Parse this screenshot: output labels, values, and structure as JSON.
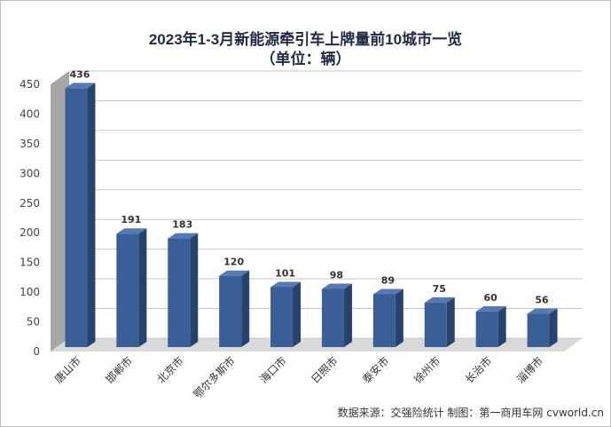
{
  "chart_data": {
    "type": "bar",
    "title": "2023年1-3月新能源牵引车上牌量前10城市一览",
    "subtitle": "（单位：辆）",
    "categories": [
      "唐山市",
      "邯郸市",
      "北京市",
      "鄂尔多斯市",
      "海口市",
      "日照市",
      "泰安市",
      "徐州市",
      "长治市",
      "淄博市"
    ],
    "values": [
      436,
      191,
      183,
      120,
      101,
      98,
      89,
      75,
      60,
      56
    ],
    "ylim": [
      0,
      450
    ],
    "yticks": [
      0,
      50,
      100,
      150,
      200,
      250,
      300,
      350,
      400,
      450
    ],
    "grid": true,
    "style": "3d-column",
    "colors": {
      "bar_front": "#3a5f96",
      "bar_side": "#26436f",
      "bar_top": "#5479b4",
      "grid": "#c8c8c8",
      "wall": "#a6a6a6"
    }
  },
  "source_note": "数据来源：交强险统计  制图：第一商用车网 cvworld.cn"
}
